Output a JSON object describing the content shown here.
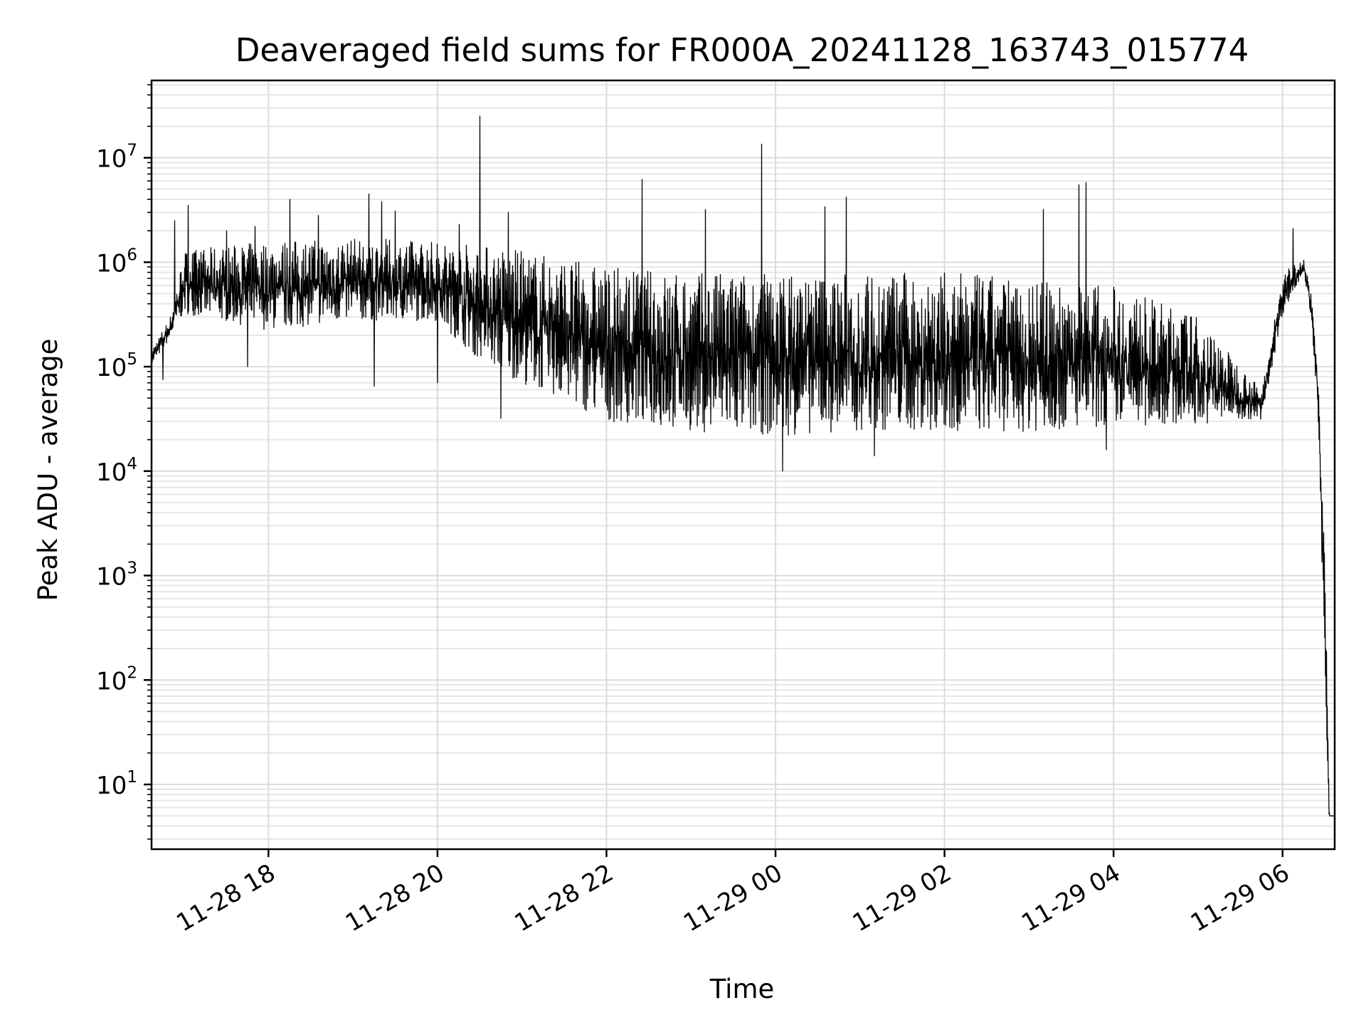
{
  "chart_data": {
    "type": "line",
    "title": "Deaveraged field sums for FR000A_20241128_163743_015774",
    "xlabel": "Time",
    "ylabel": "Peak ADU - average",
    "yscale": "log",
    "x_range": [
      "2024-11-28 16:37",
      "2024-11-29 06:37"
    ],
    "ylim": [
      2.4,
      55000000
    ],
    "grid": "on (major and minor)",
    "legend": "none",
    "line_color": "#000000",
    "x_ticks": [
      {
        "time": "2024-11-28 18:00",
        "label": "11-28 18"
      },
      {
        "time": "2024-11-28 20:00",
        "label": "11-28 20"
      },
      {
        "time": "2024-11-28 22:00",
        "label": "11-28 22"
      },
      {
        "time": "2024-11-29 00:00",
        "label": "11-29 00"
      },
      {
        "time": "2024-11-29 02:00",
        "label": "11-29 02"
      },
      {
        "time": "2024-11-29 04:00",
        "label": "11-29 04"
      },
      {
        "time": "2024-11-29 06:00",
        "label": "11-29 06"
      }
    ],
    "y_ticks": [
      {
        "value": 10,
        "base": "10",
        "exp": "1"
      },
      {
        "value": 100,
        "base": "10",
        "exp": "2"
      },
      {
        "value": 1000,
        "base": "10",
        "exp": "3"
      },
      {
        "value": 10000,
        "base": "10",
        "exp": "4"
      },
      {
        "value": 100000,
        "base": "10",
        "exp": "5"
      },
      {
        "value": 1000000,
        "base": "10",
        "exp": "6"
      },
      {
        "value": 10000000,
        "base": "10",
        "exp": "7"
      }
    ],
    "series": [
      {
        "name": "",
        "envelope": [
          {
            "time": "2024-11-28 16:37",
            "low": 100000,
            "high": 150000
          },
          {
            "time": "2024-11-28 16:50",
            "low": 180000,
            "high": 300000
          },
          {
            "time": "2024-11-28 17:00",
            "low": 300000,
            "high": 1300000
          },
          {
            "time": "2024-11-28 18:00",
            "low": 200000,
            "high": 1600000
          },
          {
            "time": "2024-11-28 19:00",
            "low": 250000,
            "high": 1700000
          },
          {
            "time": "2024-11-28 20:00",
            "low": 250000,
            "high": 1600000
          },
          {
            "time": "2024-11-28 20:30",
            "low": 100000,
            "high": 1500000
          },
          {
            "time": "2024-11-28 21:00",
            "low": 60000,
            "high": 1300000
          },
          {
            "time": "2024-11-28 21:30",
            "low": 40000,
            "high": 1100000
          },
          {
            "time": "2024-11-28 22:00",
            "low": 25000,
            "high": 900000
          },
          {
            "time": "2024-11-28 23:00",
            "low": 20000,
            "high": 800000
          },
          {
            "time": "2024-11-29 00:00",
            "low": 18000,
            "high": 800000
          },
          {
            "time": "2024-11-29 01:00",
            "low": 20000,
            "high": 800000
          },
          {
            "time": "2024-11-29 02:00",
            "low": 20000,
            "high": 800000
          },
          {
            "time": "2024-11-29 03:00",
            "low": 20000,
            "high": 700000
          },
          {
            "time": "2024-11-29 04:00",
            "low": 22000,
            "high": 600000
          },
          {
            "time": "2024-11-29 05:00",
            "low": 25000,
            "high": 300000
          },
          {
            "time": "2024-11-29 05:45",
            "low": 30000,
            "high": 60000
          },
          {
            "time": "2024-11-29 06:00",
            "low": 300000,
            "high": 800000
          },
          {
            "time": "2024-11-29 06:15",
            "low": 800000,
            "high": 1100000
          },
          {
            "time": "2024-11-29 06:20",
            "low": 300000,
            "high": 500000
          },
          {
            "time": "2024-11-29 06:25",
            "low": 40000,
            "high": 80000
          },
          {
            "time": "2024-11-29 06:30",
            "low": 100,
            "high": 1000
          },
          {
            "time": "2024-11-29 06:33",
            "low": 5,
            "high": 5
          },
          {
            "time": "2024-11-29 06:37",
            "low": 5,
            "high": 5
          }
        ],
        "spikes": [
          {
            "time": "2024-11-28 16:53",
            "value": 2500000
          },
          {
            "time": "2024-11-28 17:03",
            "value": 3500000
          },
          {
            "time": "2024-11-28 17:30",
            "value": 2000000
          },
          {
            "time": "2024-11-28 17:50",
            "value": 2200000
          },
          {
            "time": "2024-11-28 18:15",
            "value": 4000000
          },
          {
            "time": "2024-11-28 18:35",
            "value": 2800000
          },
          {
            "time": "2024-11-28 19:11",
            "value": 4500000
          },
          {
            "time": "2024-11-28 19:20",
            "value": 3800000
          },
          {
            "time": "2024-11-28 19:30",
            "value": 3100000
          },
          {
            "time": "2024-11-28 20:15",
            "value": 2300000
          },
          {
            "time": "2024-11-28 20:30",
            "value": 25000000
          },
          {
            "time": "2024-11-28 20:50",
            "value": 3000000
          },
          {
            "time": "2024-11-28 22:25",
            "value": 6200000
          },
          {
            "time": "2024-11-28 23:10",
            "value": 3200000
          },
          {
            "time": "2024-11-28 23:50",
            "value": 13500000
          },
          {
            "time": "2024-11-29 00:35",
            "value": 3400000
          },
          {
            "time": "2024-11-29 00:50",
            "value": 4200000
          },
          {
            "time": "2024-11-29 03:10",
            "value": 3200000
          },
          {
            "time": "2024-11-29 03:35",
            "value": 5500000
          },
          {
            "time": "2024-11-29 03:40",
            "value": 5800000
          },
          {
            "time": "2024-11-29 06:07",
            "value": 2100000
          }
        ],
        "dips": [
          {
            "time": "2024-11-28 16:45",
            "value": 75000
          },
          {
            "time": "2024-11-28 17:45",
            "value": 100000
          },
          {
            "time": "2024-11-28 19:15",
            "value": 65000
          },
          {
            "time": "2024-11-28 20:00",
            "value": 70000
          },
          {
            "time": "2024-11-28 20:45",
            "value": 32000
          },
          {
            "time": "2024-11-29 00:05",
            "value": 10000
          },
          {
            "time": "2024-11-29 01:10",
            "value": 14000
          },
          {
            "time": "2024-11-29 03:55",
            "value": 16000
          }
        ]
      }
    ]
  }
}
